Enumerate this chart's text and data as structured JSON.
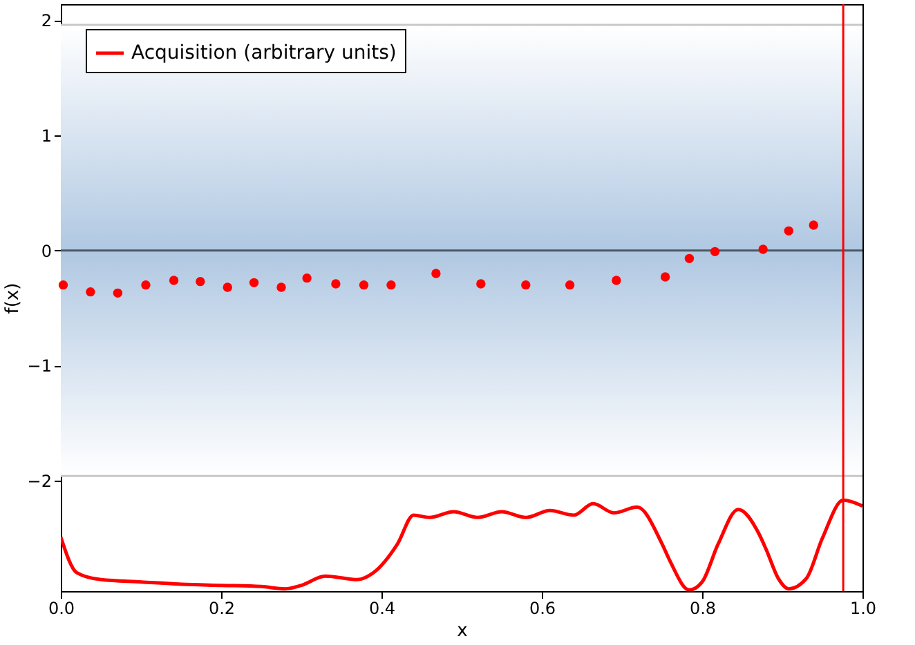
{
  "chart_data": {
    "type": "scatter",
    "xlabel": "x",
    "ylabel": "f(x)",
    "xlim": [
      0,
      1
    ],
    "ylim": [
      -2.96,
      2.14
    ],
    "xticks": [
      {
        "value": 0,
        "label": "0.0"
      },
      {
        "value": 0.2,
        "label": "0.2"
      },
      {
        "value": 0.4,
        "label": "0.4"
      },
      {
        "value": 0.6,
        "label": "0.6"
      },
      {
        "value": 0.8,
        "label": "0.8"
      },
      {
        "value": 1,
        "label": "1.0"
      }
    ],
    "yticks": [
      {
        "value": -2,
        "label": "−2"
      },
      {
        "value": -1,
        "label": "−1"
      },
      0,
      1,
      2
    ],
    "grid": false,
    "legend": "top left",
    "series": [
      {
        "color": "#ff0000",
        "marker": "circle",
        "x": [
          0.003,
          0.037,
          0.071,
          0.106,
          0.141,
          0.174,
          0.208,
          0.241,
          0.275,
          0.307,
          0.343,
          0.378,
          0.412,
          0.468,
          0.524,
          0.58,
          0.635,
          0.693,
          0.754,
          0.784,
          0.816,
          0.876,
          0.908,
          0.939
        ],
        "values": [
          -0.3,
          -0.36,
          -0.37,
          -0.3,
          -0.26,
          -0.27,
          -0.32,
          -0.28,
          -0.32,
          -0.24,
          -0.29,
          -0.3,
          -0.3,
          -0.2,
          -0.29,
          -0.3,
          -0.3,
          -0.26,
          -0.23,
          -0.07,
          -0.01,
          0.01,
          0.17,
          0.22
        ]
      },
      {
        "type": "line",
        "name": "Acquisition (arbitrary units)",
        "color": "#ff0000",
        "line_style": "solid",
        "x": [
          0,
          0.02,
          0.05,
          0.1,
          0.15,
          0.2,
          0.25,
          0.28,
          0.3,
          0.33,
          0.37,
          0.39,
          0.42,
          0.44,
          0.46,
          0.49,
          0.52,
          0.55,
          0.58,
          0.61,
          0.64,
          0.664,
          0.69,
          0.719,
          0.75,
          0.76,
          0.784,
          0.8,
          0.82,
          0.845,
          0.87,
          0.88,
          0.895,
          0.908,
          0.93,
          0.95,
          0.976,
          1.0
        ],
        "values": [
          -2.49,
          -2.8,
          -2.86,
          -2.88,
          -2.9,
          -2.91,
          -2.92,
          -2.94,
          -2.91,
          -2.83,
          -2.86,
          -2.8,
          -2.55,
          -2.3,
          -2.32,
          -2.27,
          -2.32,
          -2.27,
          -2.32,
          -2.26,
          -2.3,
          -2.2,
          -2.28,
          -2.23,
          -2.55,
          -2.7,
          -2.95,
          -2.88,
          -2.55,
          -2.25,
          -2.45,
          -2.6,
          -2.85,
          -2.94,
          -2.85,
          -2.5,
          -2.17,
          -2.22
        ]
      }
    ],
    "bands": [
      {
        "axis": "y",
        "from": -1.96,
        "to": 1.96,
        "color": "#b0c8e2"
      }
    ],
    "ref_lines": [
      {
        "axis": "y",
        "value": 0,
        "color": "#4a5866"
      },
      {
        "axis": "y",
        "value": 1.96,
        "color": "#c8c8c8"
      },
      {
        "axis": "y",
        "value": -1.96,
        "color": "#c8c8c8"
      },
      {
        "axis": "x",
        "value": 0.976,
        "color": "#ff0000"
      }
    ]
  }
}
